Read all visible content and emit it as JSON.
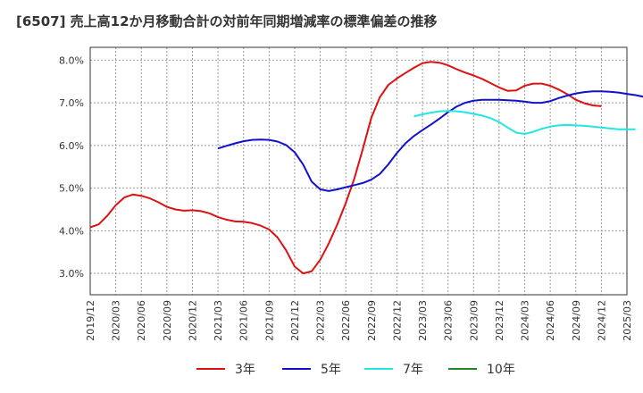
{
  "chart_data": {
    "type": "line",
    "title": "[6507]  売上高12か月移動合計の対前年同期増減率の標準偏差の推移",
    "xlabel": "",
    "ylabel": "",
    "ylim": [
      2.5,
      8.3
    ],
    "grid": true,
    "legend_placement": "bottom",
    "x_ticks": [
      "2019/12",
      "2020/03",
      "2020/06",
      "2020/09",
      "2020/12",
      "2021/03",
      "2021/06",
      "2021/09",
      "2021/12",
      "2022/03",
      "2022/06",
      "2022/09",
      "2022/12",
      "2023/03",
      "2023/06",
      "2023/09",
      "2023/12",
      "2024/03",
      "2024/06",
      "2024/09",
      "2024/12",
      "2025/03"
    ],
    "y_ticks": [
      3.0,
      4.0,
      5.0,
      6.0,
      7.0,
      8.0
    ],
    "y_tick_labels": [
      "3.0%",
      "4.0%",
      "5.0%",
      "6.0%",
      "7.0%",
      "8.0%"
    ],
    "series": [
      {
        "name": "3年",
        "color": "#dd1111",
        "start": "2019/12",
        "values": [
          4.08,
          4.15,
          4.35,
          4.6,
          4.78,
          4.85,
          4.82,
          4.76,
          4.67,
          4.56,
          4.5,
          4.47,
          4.48,
          4.46,
          4.41,
          4.32,
          4.26,
          4.22,
          4.21,
          4.18,
          4.12,
          4.03,
          3.84,
          3.54,
          3.16,
          3.0,
          3.05,
          3.32,
          3.7,
          4.15,
          4.65,
          5.22,
          5.92,
          6.65,
          7.13,
          7.42,
          7.57,
          7.7,
          7.82,
          7.93,
          7.96,
          7.94,
          7.88,
          7.79,
          7.71,
          7.64,
          7.56,
          7.46,
          7.36,
          7.28,
          7.29,
          7.4,
          7.45,
          7.45,
          7.4,
          7.31,
          7.2,
          7.07,
          6.99,
          6.94,
          6.92
        ]
      },
      {
        "name": "5年",
        "color": "#1111cc",
        "start": "2021/03",
        "values": [
          5.93,
          5.99,
          6.05,
          6.1,
          6.13,
          6.14,
          6.13,
          6.09,
          6.01,
          5.84,
          5.55,
          5.15,
          4.97,
          4.93,
          4.97,
          5.02,
          5.07,
          5.12,
          5.2,
          5.33,
          5.56,
          5.82,
          6.05,
          6.22,
          6.36,
          6.49,
          6.63,
          6.78,
          6.91,
          7.0,
          7.05,
          7.07,
          7.07,
          7.07,
          7.06,
          7.05,
          7.03,
          7.0,
          7.0,
          7.04,
          7.11,
          7.17,
          7.22,
          7.25,
          7.27,
          7.27,
          7.26,
          7.24,
          7.21,
          7.18,
          7.14
        ]
      },
      {
        "name": "7年",
        "color": "#22e5e5",
        "start": "2023/02",
        "values": [
          6.68,
          6.73,
          6.77,
          6.8,
          6.81,
          6.8,
          6.78,
          6.74,
          6.7,
          6.64,
          6.55,
          6.42,
          6.3,
          6.27,
          6.32,
          6.39,
          6.44,
          6.47,
          6.48,
          6.47,
          6.46,
          6.44,
          6.42,
          6.4,
          6.38,
          6.38,
          6.38
        ]
      },
      {
        "name": "10年",
        "color": "#228822",
        "start": "",
        "values": []
      }
    ]
  }
}
